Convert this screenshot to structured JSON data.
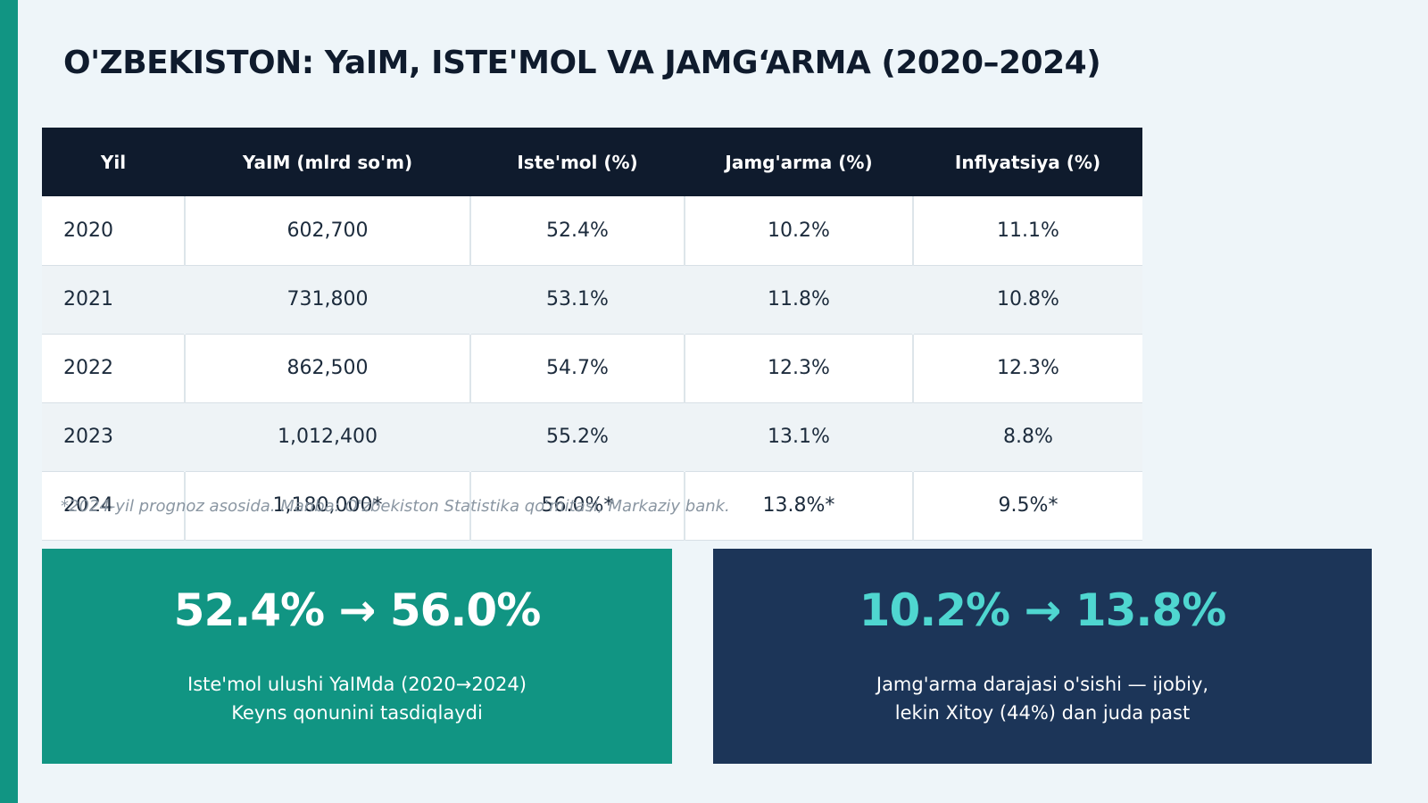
{
  "title": "O'ZBEKISTON: YaIM, ISTE'MOL VA JAMG‘ARMA (2020–2024)",
  "colors": {
    "accent": "#119583",
    "dark": "#0f1b2d",
    "navy": "#1c3558",
    "highlight": "#4fd6d0"
  },
  "table": {
    "headers": [
      "Yil",
      "YaIM (mlrd so'm)",
      "Iste'mol (%)",
      "Jamg'arma (%)",
      "Inflyatsiya (%)"
    ],
    "rows": [
      [
        "2020",
        "602,700",
        "52.4%",
        "10.2%",
        "11.1%"
      ],
      [
        "2021",
        "731,800",
        "53.1%",
        "11.8%",
        "10.8%"
      ],
      [
        "2022",
        "862,500",
        "54.7%",
        "12.3%",
        "12.3%"
      ],
      [
        "2023",
        "1,012,400",
        "55.2%",
        "13.1%",
        "8.8%"
      ],
      [
        "2024",
        "1,180,000*",
        "56.0%*",
        "13.8%*",
        "9.5%*"
      ]
    ]
  },
  "footnote": "*2024-yil prognoz asosida. Manba: O'zbekiston Statistika qo'mitasi, Markaziy bank.",
  "cards": [
    {
      "figure": "52.4% → 56.0%",
      "caption_line1": "Iste'mol ulushi YaIMda (2020→2024)",
      "caption_line2": "Keyns qonunini tasdiqlaydi"
    },
    {
      "figure": "10.2% → 13.8%",
      "caption_line1": "Jamg'arma darajasi o'sishi — ijobiy,",
      "caption_line2": "lekin Xitoy (44%) dan juda past"
    }
  ]
}
